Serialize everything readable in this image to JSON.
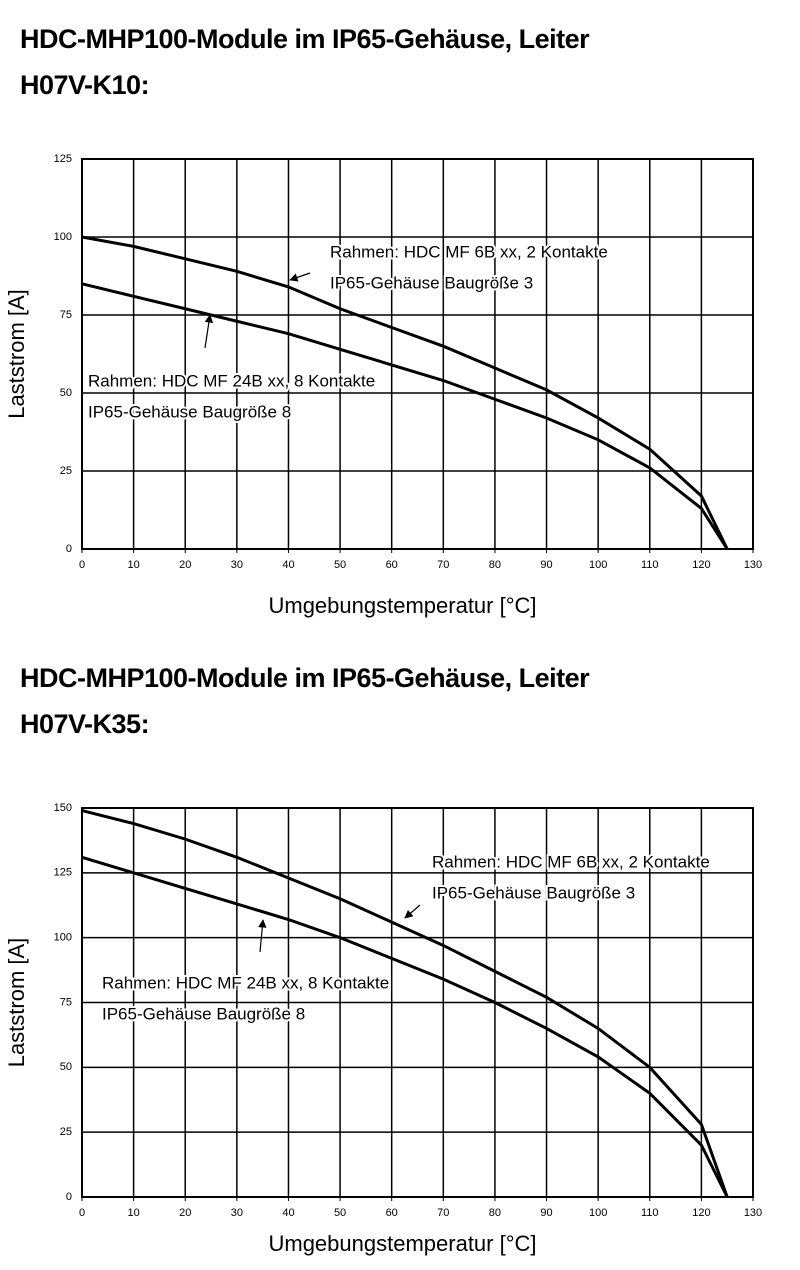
{
  "chart_data": [
    {
      "type": "line",
      "title": "HDC-MHP100-Module im IP65-Gehäuse, Leiter H07V-K10:",
      "x_label": "Umgebungstemperatur [°C]",
      "y_label": "Laststrom [A]",
      "x": [
        0,
        10,
        20,
        30,
        40,
        50,
        60,
        70,
        80,
        90,
        100,
        110,
        120,
        125
      ],
      "series": [
        {
          "name": "Rahmen: HDC MF 6B xx, 2 Kontakte",
          "housing": "IP65-Gehäuse Baugröße 3",
          "color": "#000000",
          "values": [
            100,
            97,
            93,
            89,
            84,
            77,
            71,
            65,
            58,
            51,
            42,
            32,
            17,
            0
          ]
        },
        {
          "name": "Rahmen: HDC MF 24B xx, 8 Kontakte",
          "housing": "IP65-Gehäuse Baugröße 8",
          "color": "#000000",
          "values": [
            85,
            81,
            77,
            73,
            69,
            64,
            59,
            54,
            48,
            42,
            35,
            26,
            13,
            0
          ]
        }
      ],
      "xlim": [
        0,
        130
      ],
      "xticks": [
        0,
        10,
        20,
        30,
        40,
        50,
        60,
        70,
        80,
        90,
        100,
        110,
        120,
        130
      ],
      "ylim": [
        0,
        125
      ],
      "yticks": [
        0,
        25,
        50,
        75,
        100,
        125
      ],
      "grid": true
    },
    {
      "type": "line",
      "title": "HDC-MHP100-Module im IP65-Gehäuse, Leiter H07V-K35:",
      "x_label": "Umgebungstemperatur [°C]",
      "y_label": "Laststrom [A]",
      "x": [
        0,
        10,
        20,
        30,
        40,
        50,
        60,
        70,
        80,
        90,
        100,
        110,
        120,
        125
      ],
      "series": [
        {
          "name": "Rahmen: HDC MF 6B xx, 2 Kontakte",
          "housing": "IP65-Gehäuse Baugröße 3",
          "color": "#000000",
          "values": [
            149,
            144,
            138,
            131,
            123,
            115,
            106,
            97,
            87,
            77,
            65,
            50,
            28,
            0
          ]
        },
        {
          "name": "Rahmen: HDC MF 24B xx, 8 Kontakte",
          "housing": "IP65-Gehäuse Baugröße 8",
          "color": "#000000",
          "values": [
            131,
            125,
            119,
            113,
            107,
            100,
            92,
            84,
            75,
            65,
            54,
            40,
            20,
            0
          ]
        }
      ],
      "xlim": [
        0,
        130
      ],
      "xticks": [
        0,
        10,
        20,
        30,
        40,
        50,
        60,
        70,
        80,
        90,
        100,
        110,
        120,
        130
      ],
      "ylim": [
        0,
        150
      ],
      "yticks": [
        0,
        25,
        50,
        75,
        100,
        125,
        150
      ],
      "grid": true
    }
  ]
}
